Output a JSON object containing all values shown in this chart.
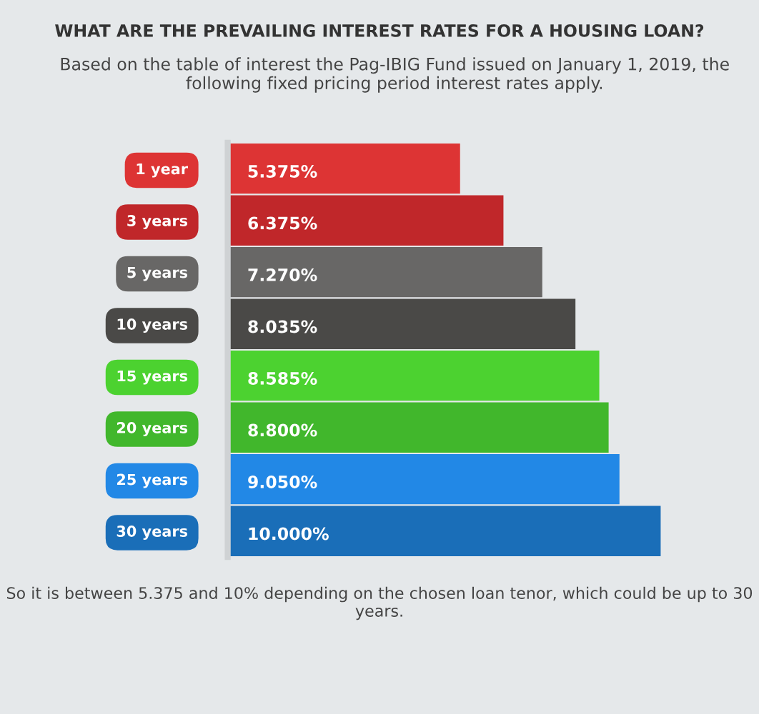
{
  "chart_data": {
    "type": "bar",
    "orientation": "horizontal",
    "title": "WHAT ARE THE PREVAILING INTEREST RATES FOR A HOUSING LOAN?",
    "subtitle": "Based on the table of interest the Pag-IBIG Fund issued on January 1, 2019, the following fixed pricing period interest rates apply.",
    "categories": [
      "1 year",
      "3 years",
      "5 years",
      "10 years",
      "15 years",
      "20 years",
      "25 years",
      "30 years"
    ],
    "values": [
      5.375,
      6.375,
      7.27,
      8.035,
      8.585,
      8.8,
      9.05,
      10.0
    ],
    "value_labels": [
      "5.375%",
      "6.375%",
      "7.270%",
      "8.035%",
      "8.585%",
      "8.800%",
      "9.050%",
      "10.000%"
    ],
    "colors": [
      "#dd3434",
      "#c0272a",
      "#686766",
      "#4a4947",
      "#4cd230",
      "#41b72c",
      "#2288e6",
      "#1a6eb8"
    ],
    "annotations": [
      "So it is between 5.375 and 10% depending on the chosen loan tenor, which could be up to 30 years."
    ],
    "tick_labels": "y",
    "grid": false
  }
}
